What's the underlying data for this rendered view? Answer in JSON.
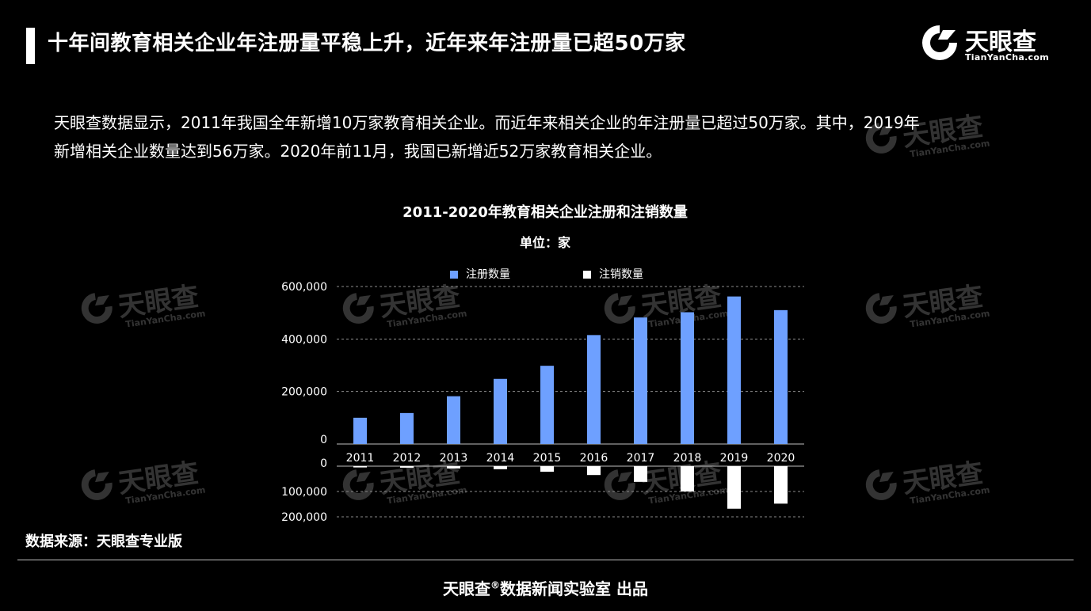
{
  "header": {
    "title": "十年间教育相关企业年注册量平稳上升，近年来年注册量已超50万家"
  },
  "brand": {
    "name": "天眼查",
    "domain": "TianYanCha.com"
  },
  "intro": {
    "line1": "天眼查数据显示，2011年我国全年新增10万家教育相关企业。而近年来相关企业的年注册量已超过50万家。其中，2019年",
    "line2": "新增相关企业数量达到56万家。2020年前11月，我国已新增近52万家教育相关企业。"
  },
  "watermark": {
    "name": "天眼查",
    "domain": "TianYanCha.com"
  },
  "chart_data": {
    "type": "bar",
    "title": "2011-2020年教育相关企业注册和注销数量",
    "subtitle": "单位：家",
    "categories": [
      "2011",
      "2012",
      "2013",
      "2014",
      "2015",
      "2016",
      "2017",
      "2018",
      "2019",
      "2020"
    ],
    "series": [
      {
        "name": "注册数量",
        "color": "#6ea0ff",
        "values": [
          100000,
          118000,
          182000,
          248000,
          298000,
          415000,
          482000,
          502000,
          562000,
          510000
        ]
      },
      {
        "name": "注销数量",
        "color": "#ffffff",
        "values": [
          5000,
          6000,
          9000,
          12000,
          22000,
          35000,
          62000,
          100000,
          168000,
          148000
        ]
      }
    ],
    "upper_axis": {
      "ylim": [
        0,
        600000
      ],
      "ticks": [
        "600,000",
        "400,000",
        "200,000",
        "0"
      ],
      "tick_values": [
        600000,
        400000,
        200000,
        0
      ]
    },
    "lower_axis": {
      "ylim": [
        0,
        200000
      ],
      "ticks": [
        "0",
        "100,000",
        "200,000"
      ],
      "tick_values": [
        0,
        100000,
        200000
      ],
      "inverted": true
    },
    "grid": true,
    "legend_position": "top-center"
  },
  "source": {
    "text": "数据来源：天眼查专业版"
  },
  "footer": {
    "brand": "天眼查",
    "reg": "®",
    "text": "数据新闻实验室 出品"
  }
}
